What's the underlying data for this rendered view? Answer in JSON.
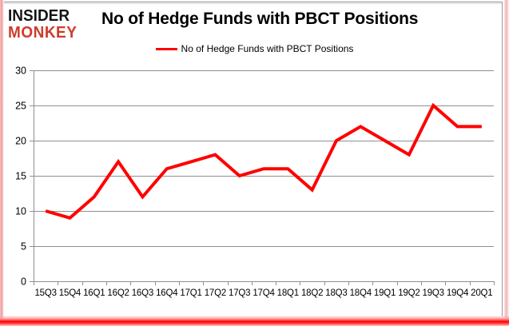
{
  "header": {
    "logo_line1": "INSIDER",
    "logo_line2": "MONKEY",
    "title": "No of Hedge Funds with PBCT Positions"
  },
  "legend": {
    "label": "No of Hedge Funds with PBCT Positions",
    "line_color": "#ff0000"
  },
  "chart_data": {
    "type": "line",
    "title": "No of Hedge Funds with PBCT Positions",
    "categories": [
      "15Q3",
      "15Q4",
      "16Q1",
      "16Q2",
      "16Q3",
      "16Q4",
      "17Q1",
      "17Q2",
      "17Q3",
      "17Q4",
      "18Q1",
      "18Q2",
      "18Q3",
      "18Q4",
      "19Q1",
      "19Q2",
      "19Q3",
      "19Q4",
      "20Q1"
    ],
    "series": [
      {
        "name": "No of Hedge Funds with PBCT Positions",
        "color": "#ff0000",
        "values": [
          10,
          9,
          12,
          17,
          12,
          16,
          17,
          18,
          15,
          16,
          16,
          13,
          20,
          22,
          20,
          18,
          25,
          22,
          22
        ]
      }
    ],
    "xlabel": "",
    "ylabel": "",
    "ylim": [
      0,
      30
    ],
    "ytick_step": 5,
    "yticks": [
      0,
      5,
      10,
      15,
      20,
      25,
      30
    ],
    "grid": true,
    "legend_position": "top-center"
  },
  "colors": {
    "accent_red": "#ff0000",
    "logo_red": "#ce3b2c",
    "grid_gray": "#8f8f8f",
    "text_black": "#000000",
    "background": "#ffffff"
  }
}
